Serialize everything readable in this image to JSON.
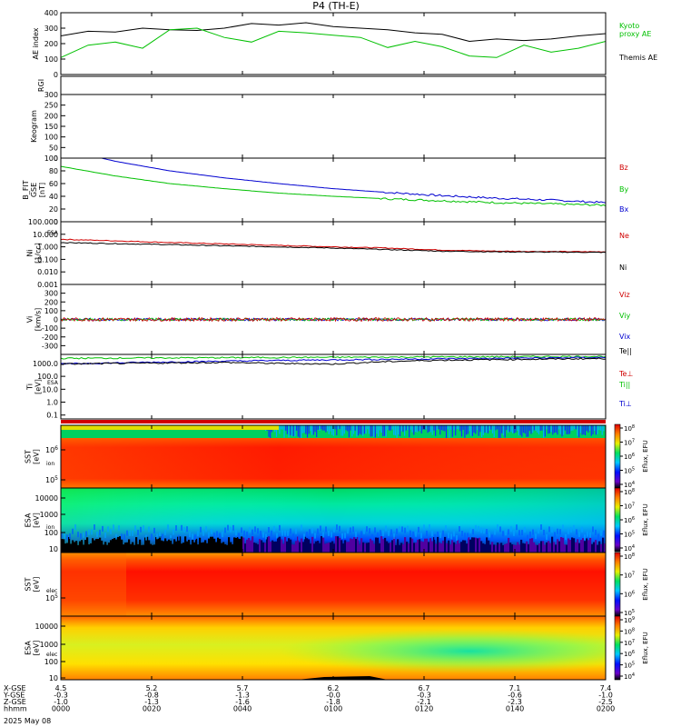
{
  "title": "P4 (TH-E)",
  "x_axis": {
    "row_labels": [
      "X-GSE",
      "Y-GSE",
      "Z-GSE",
      "hhmm"
    ],
    "columns": [
      {
        "x": "4.5",
        "y": "-0.3",
        "z": "-1.0",
        "hhmm": "0000"
      },
      {
        "x": "5.2",
        "y": "-0.8",
        "z": "-1.3",
        "hhmm": "0020"
      },
      {
        "x": "5.7",
        "y": "-1.3",
        "z": "-1.6",
        "hhmm": "0040"
      },
      {
        "x": "6.2",
        "y": "-0.0",
        "z": "-1.8",
        "hhmm": "0100"
      },
      {
        "x": "6.7",
        "y": "-0.3",
        "z": "-2.1",
        "hhmm": "0120"
      },
      {
        "x": "7.1",
        "y": "-0.6",
        "z": "-2.3",
        "hhmm": "0140"
      },
      {
        "x": "7.4",
        "y": "-1.0",
        "z": "-2.5",
        "hhmm": "0200"
      }
    ],
    "date": "2025 May 08"
  },
  "chart_data": [
    {
      "panel": "ae-index",
      "type": "line",
      "ylabel": "AE index",
      "ylim": [
        0,
        400
      ],
      "yticks": [
        "400",
        "300",
        "200",
        "100",
        "0"
      ],
      "legend": [
        {
          "label": "Kyoto\nproxy AE",
          "color": "#00c000"
        },
        {
          "label": "Themis AE",
          "color": "#000000"
        }
      ],
      "x_minutes": [
        0,
        6,
        12,
        18,
        24,
        30,
        36,
        42,
        48,
        54,
        60,
        66,
        72,
        78,
        84,
        90,
        96,
        102,
        108,
        114,
        120
      ],
      "series": [
        {
          "name": "Themis AE",
          "color": "#000000",
          "values": [
            250,
            280,
            275,
            300,
            290,
            285,
            300,
            330,
            320,
            335,
            310,
            300,
            290,
            270,
            260,
            215,
            230,
            220,
            230,
            250,
            265
          ]
        },
        {
          "name": "Kyoto proxy AE",
          "color": "#00c000",
          "values": [
            110,
            190,
            210,
            170,
            290,
            300,
            240,
            210,
            280,
            270,
            255,
            240,
            175,
            215,
            180,
            120,
            110,
            190,
            145,
            170,
            215
          ]
        }
      ]
    },
    {
      "panel": "keogram",
      "type": "heatmap",
      "ylabel": "Keogram",
      "ylabel2": "RGI",
      "ylim": [
        0,
        300
      ],
      "yticks": [
        "300",
        "250",
        "200",
        "150",
        "100",
        "50",
        "0"
      ]
    },
    {
      "panel": "bfield",
      "type": "line",
      "ylabel": "B_FIT\nGSE\n[nT]",
      "ylim": [
        0,
        100
      ],
      "yticks": [
        "100",
        "80",
        "60",
        "40",
        "20",
        "0"
      ],
      "legend": [
        {
          "label": "Bz",
          "color": "#d00000"
        },
        {
          "label": "By",
          "color": "#00c000"
        },
        {
          "label": "Bx",
          "color": "#0000d0"
        }
      ],
      "x_minutes": [
        0,
        12,
        24,
        36,
        48,
        60,
        72,
        84,
        96,
        108,
        120
      ],
      "series": [
        {
          "name": "Bx",
          "color": "#0000d0",
          "values": [
            115,
            95,
            80,
            69,
            60,
            52,
            46,
            41,
            37,
            34,
            30
          ]
        },
        {
          "name": "By",
          "color": "#00c000",
          "values": [
            87,
            72,
            60,
            52,
            45,
            40,
            36,
            33,
            30,
            28,
            26
          ]
        }
      ]
    },
    {
      "panel": "density",
      "type": "line",
      "log": true,
      "ylabel": "Ni\n[1/cc]",
      "ylabel_small": "ESA",
      "ylim": [
        0.001,
        100
      ],
      "yticks": [
        "100.000",
        "10.000",
        "1.000",
        "0.100",
        "0.010",
        "0.001"
      ],
      "legend": [
        {
          "label": "Ne",
          "color": "#d00000"
        },
        {
          "label": "Ni",
          "color": "#000000"
        }
      ],
      "x_minutes": [
        0,
        12,
        24,
        36,
        48,
        60,
        72,
        84,
        96,
        108,
        120
      ],
      "series": [
        {
          "name": "Ne",
          "color": "#d00000",
          "values": [
            4.0,
            3.0,
            2.2,
            1.7,
            1.3,
            1.0,
            0.8,
            0.55,
            0.45,
            0.42,
            0.4
          ]
        },
        {
          "name": "Ni",
          "color": "#000000",
          "values": [
            2.2,
            1.8,
            1.5,
            1.2,
            1.0,
            0.8,
            0.6,
            0.45,
            0.4,
            0.38,
            0.36
          ]
        }
      ]
    },
    {
      "panel": "velocity",
      "type": "line",
      "ylabel": "Vi\n[km/s]",
      "ylim": [
        -400,
        400
      ],
      "yticks": [
        "300",
        "200",
        "100",
        "0",
        "-100",
        "-200",
        "-300"
      ],
      "legend": [
        {
          "label": "Viz",
          "color": "#d00000"
        },
        {
          "label": "Viy",
          "color": "#00c000"
        },
        {
          "label": "Vix",
          "color": "#0000d0"
        }
      ],
      "x_minutes": [
        0,
        120
      ],
      "series": [
        {
          "name": "Vix",
          "color": "#0000d0",
          "values": [
            0,
            0
          ]
        },
        {
          "name": "Viy",
          "color": "#00c000",
          "values": [
            0,
            0
          ]
        },
        {
          "name": "Viz",
          "color": "#d00000",
          "values": [
            0,
            0
          ]
        }
      ]
    },
    {
      "panel": "temperature",
      "type": "line",
      "log": true,
      "ylabel": "Ti\n[eV]",
      "ylabel_small": "ESA",
      "ylim": [
        0.05,
        5000
      ],
      "yticks": [
        "1000.0",
        "100.0",
        "10.0",
        "1.0",
        "0.1"
      ],
      "legend": [
        {
          "label": "Te||",
          "color": "#000000"
        },
        {
          "label": "Te⊥",
          "color": "#d00000"
        },
        {
          "label": "Ti||",
          "color": "#00c000"
        },
        {
          "label": "Ti⊥",
          "color": "#0000d0"
        }
      ],
      "x_minutes": [
        0,
        12,
        24,
        36,
        48,
        60,
        72,
        84,
        96,
        108,
        120
      ],
      "series": [
        {
          "name": "Ti||",
          "color": "#00c000",
          "values": [
            2500,
            2600,
            2700,
            2800,
            2900,
            3000,
            3100,
            3200,
            3300,
            3400,
            3500
          ]
        },
        {
          "name": "Ti⊥",
          "color": "#0000d0",
          "values": [
            900,
            1100,
            1300,
            1500,
            1700,
            1900,
            2100,
            2300,
            2500,
            2700,
            2900
          ]
        },
        {
          "name": "Te||",
          "color": "#000000",
          "values": [
            900,
            1000,
            1100,
            1200,
            1000,
            900,
            1400,
            1800,
            2000,
            2200,
            2400
          ]
        }
      ]
    },
    {
      "panel": "sst-ion",
      "type": "heatmap",
      "ylabel": "SST\n[eV]",
      "ylabel_small": "ion",
      "ylog": true,
      "yticks": [
        "10^6",
        "10^5"
      ],
      "colorbar": {
        "label": "Eflux, EFU",
        "ticks": [
          "10^8",
          "10^7",
          "10^6",
          "10^5",
          "10^4"
        ]
      }
    },
    {
      "panel": "esa-ion",
      "type": "heatmap",
      "ylabel": "ESA\n[eV]",
      "ylabel_small": "ion",
      "ylog": true,
      "yticks": [
        "10000",
        "1000",
        "100",
        "10"
      ],
      "colorbar": {
        "label": "Eflux, EFU",
        "ticks": [
          "10^8",
          "10^7",
          "10^6",
          "10^5",
          "10^4"
        ]
      }
    },
    {
      "panel": "sst-ele",
      "type": "heatmap",
      "ylabel": "SST\n[eV]",
      "ylabel_small": "elec",
      "ylog": true,
      "yticks": [
        "10^5"
      ],
      "colorbar": {
        "label": "Eflux, EFU",
        "ticks": [
          "10^8",
          "10^7",
          "10^6",
          "10^5"
        ]
      }
    },
    {
      "panel": "esa-ele",
      "type": "heatmap",
      "ylabel": "ESA\n[eV]",
      "ylabel_small": "elec",
      "ylog": true,
      "yticks": [
        "10000",
        "1000",
        "100",
        "10"
      ],
      "colorbar": {
        "label": "Eflux, EFU",
        "ticks": [
          "10^9",
          "10^8",
          "10^7",
          "10^6",
          "10^5",
          "10^4"
        ]
      }
    }
  ]
}
